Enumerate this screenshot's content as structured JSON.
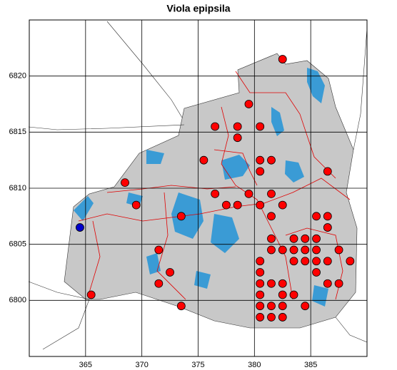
{
  "chart_data": {
    "type": "scatter",
    "title": "Viola epipsila",
    "xlim": [
      360,
      390
    ],
    "ylim": [
      6795,
      6825
    ],
    "xticks": [
      365,
      370,
      375,
      380,
      385
    ],
    "yticks": [
      6800,
      6805,
      6810,
      6815,
      6820
    ],
    "grid": true,
    "series": [
      {
        "color": "#ff0000",
        "x": [
          382.5,
          379.5,
          376.5,
          378.5,
          380.5,
          378.5,
          375.5,
          380.5,
          381.5,
          380.5,
          386.5,
          368.5,
          376.5,
          379.5,
          381.5,
          369.5,
          377.5,
          378.5,
          380.5,
          382.5,
          381.5,
          385.5,
          386.5,
          373.5,
          386.5,
          381.5,
          383.5,
          384.5,
          385.5,
          371.5,
          381.5,
          382.5,
          383.5,
          384.5,
          385.5,
          387.5,
          380.5,
          383.5,
          384.5,
          385.5,
          386.5,
          388.5,
          372.5,
          380.5,
          385.5,
          371.5,
          380.5,
          381.5,
          382.5,
          386.5,
          387.5,
          365.5,
          380.5,
          382.5,
          383.5,
          373.5,
          380.5,
          381.5,
          382.5,
          384.5,
          380.5,
          381.5,
          382.5
        ],
        "values": [
          6821.5,
          6817.5,
          6815.5,
          6815.5,
          6815.5,
          6814.5,
          6812.5,
          6812.5,
          6812.5,
          6811.5,
          6811.5,
          6810.5,
          6809.5,
          6809.5,
          6809.5,
          6808.5,
          6808.5,
          6808.5,
          6808.5,
          6808.5,
          6807.5,
          6807.5,
          6807.5,
          6807.5,
          6806.5,
          6805.5,
          6805.5,
          6805.5,
          6805.5,
          6804.5,
          6804.5,
          6804.5,
          6804.5,
          6804.5,
          6804.5,
          6804.5,
          6803.5,
          6803.5,
          6803.5,
          6803.5,
          6803.5,
          6803.5,
          6802.5,
          6802.5,
          6802.5,
          6801.5,
          6801.5,
          6801.5,
          6801.5,
          6801.5,
          6801.5,
          6800.5,
          6800.5,
          6800.5,
          6800.5,
          6799.5,
          6799.5,
          6799.5,
          6799.5,
          6799.5,
          6798.5,
          6798.5,
          6798.5
        ]
      },
      {
        "color": "#0000cc",
        "x": [
          364.5
        ],
        "values": [
          6806.5
        ]
      }
    ]
  }
}
